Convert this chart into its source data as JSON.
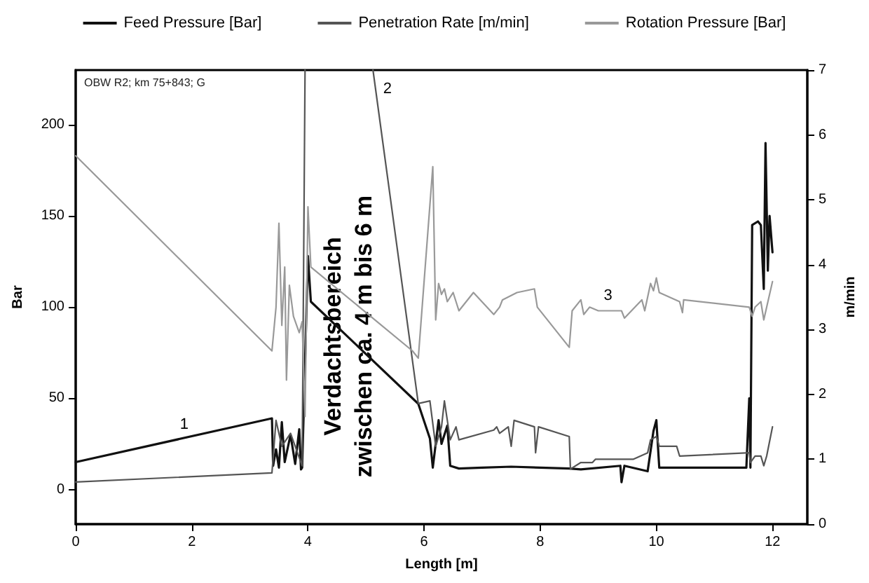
{
  "chart_data": {
    "type": "line",
    "xlabel": "Length [m]",
    "ylabel": "Bar",
    "y2label": "m/min",
    "xlim": [
      0,
      12.6
    ],
    "xticks": [
      0,
      2,
      4,
      6,
      8,
      10,
      12
    ],
    "ylim": [
      -19,
      230
    ],
    "yticks": [
      0,
      50,
      100,
      150,
      200
    ],
    "y2lim": [
      0,
      7
    ],
    "y2ticks": [
      0,
      1,
      2,
      3,
      4,
      5,
      6,
      7
    ],
    "grid": false,
    "legend": "top",
    "marker": "none",
    "line_style": "solid",
    "annotations": [
      "OBW R2; km 75+843; G",
      {
        "text": "1",
        "x": 1.7,
        "y": 27
      },
      {
        "text": "2",
        "x": 5.2,
        "y": 211
      },
      {
        "text": "3",
        "x": 9.0,
        "y": 98
      },
      {
        "text": "Verdachtsbereich\nzwischen ca. 4 m bis 6 m",
        "x": 4.7,
        "y": 84
      }
    ],
    "series": [
      {
        "name": "Feed Pressure [Bar]",
        "color": "#111111",
        "x": [
          0,
          3.38,
          3.4,
          3.45,
          3.5,
          3.55,
          3.6,
          3.7,
          3.78,
          3.85,
          3.88,
          3.9,
          4.0,
          4.05,
          5.9,
          6.1,
          6.15,
          6.25,
          6.3,
          6.4,
          6.45,
          6.6,
          7.0,
          7.5,
          8.0,
          8.5,
          8.7,
          9.38,
          9.4,
          9.45,
          9.85,
          9.95,
          10.0,
          10.05,
          11.55,
          11.6,
          11.62,
          11.65,
          11.75,
          11.8,
          11.85,
          11.88,
          11.92,
          11.95,
          12.0
        ],
        "values": [
          15,
          39,
          13,
          22,
          12,
          37,
          15,
          30,
          14,
          33,
          11,
          12,
          128,
          103,
          47,
          28,
          12,
          38,
          25,
          35,
          13,
          11.5,
          12,
          12.5,
          12,
          11.5,
          11,
          13,
          4,
          13,
          10,
          32,
          38,
          12,
          12,
          50,
          12,
          145,
          147,
          145,
          110,
          190,
          120,
          150,
          130
        ]
      },
      {
        "name": "Penetration Rate [m/min]",
        "color": "#555555",
        "axis": "y2",
        "x": [
          0,
          3.38,
          3.45,
          3.55,
          3.7,
          3.9,
          3.95,
          4.5,
          5.12,
          5.9,
          6.1,
          6.2,
          6.3,
          6.35,
          6.45,
          6.55,
          6.6,
          7.2,
          7.25,
          7.3,
          7.45,
          7.5,
          7.55,
          7.9,
          7.92,
          7.97,
          8.5,
          8.52,
          8.7,
          8.9,
          8.95,
          9.6,
          9.85,
          9.9,
          10.0,
          10.05,
          10.35,
          10.4,
          11.6,
          11.62,
          11.7,
          11.8,
          11.85,
          11.9,
          12.0
        ],
        "values": [
          0.65,
          0.79,
          1.6,
          1.2,
          1.4,
          0.9,
          7,
          null,
          7,
          1.86,
          1.9,
          1.2,
          1.5,
          1.9,
          1.3,
          1.5,
          1.3,
          1.45,
          1.5,
          1.4,
          1.5,
          1.2,
          1.6,
          1.5,
          1.1,
          1.5,
          1.35,
          0.85,
          0.95,
          0.95,
          1.0,
          1.0,
          1.1,
          1.3,
          1.35,
          1.2,
          1.2,
          1.05,
          1.1,
          0.95,
          1.05,
          1.05,
          0.9,
          1.05,
          1.5
        ]
      },
      {
        "name": "Rotation Pressure [Bar]",
        "color": "#999999",
        "x": [
          0,
          3.38,
          3.45,
          3.5,
          3.55,
          3.6,
          3.63,
          3.68,
          3.75,
          3.85,
          3.9,
          3.95,
          4.0,
          4.05,
          5.8,
          5.9,
          6.15,
          6.2,
          6.25,
          6.3,
          6.35,
          6.4,
          6.5,
          6.6,
          6.85,
          7.2,
          7.3,
          7.35,
          7.6,
          7.9,
          7.95,
          8.5,
          8.55,
          8.7,
          8.75,
          8.85,
          9.0,
          9.4,
          9.45,
          9.75,
          9.8,
          9.9,
          9.95,
          10.0,
          10.05,
          10.4,
          10.45,
          10.47,
          11.6,
          11.65,
          11.7,
          11.8,
          11.85,
          11.9,
          12.0
        ],
        "values": [
          183,
          76,
          100,
          146,
          90,
          122,
          60,
          112,
          95,
          86,
          92,
          40,
          155,
          122,
          76,
          72,
          177,
          93,
          113,
          107,
          110,
          103,
          108,
          98,
          108,
          96,
          100,
          104,
          108,
          110,
          100,
          78,
          98,
          104,
          96,
          100,
          98,
          98,
          94,
          104,
          98,
          113,
          109,
          116,
          108,
          103,
          97,
          104,
          100,
          95,
          100,
          103,
          93,
          100,
          114
        ]
      }
    ]
  }
}
